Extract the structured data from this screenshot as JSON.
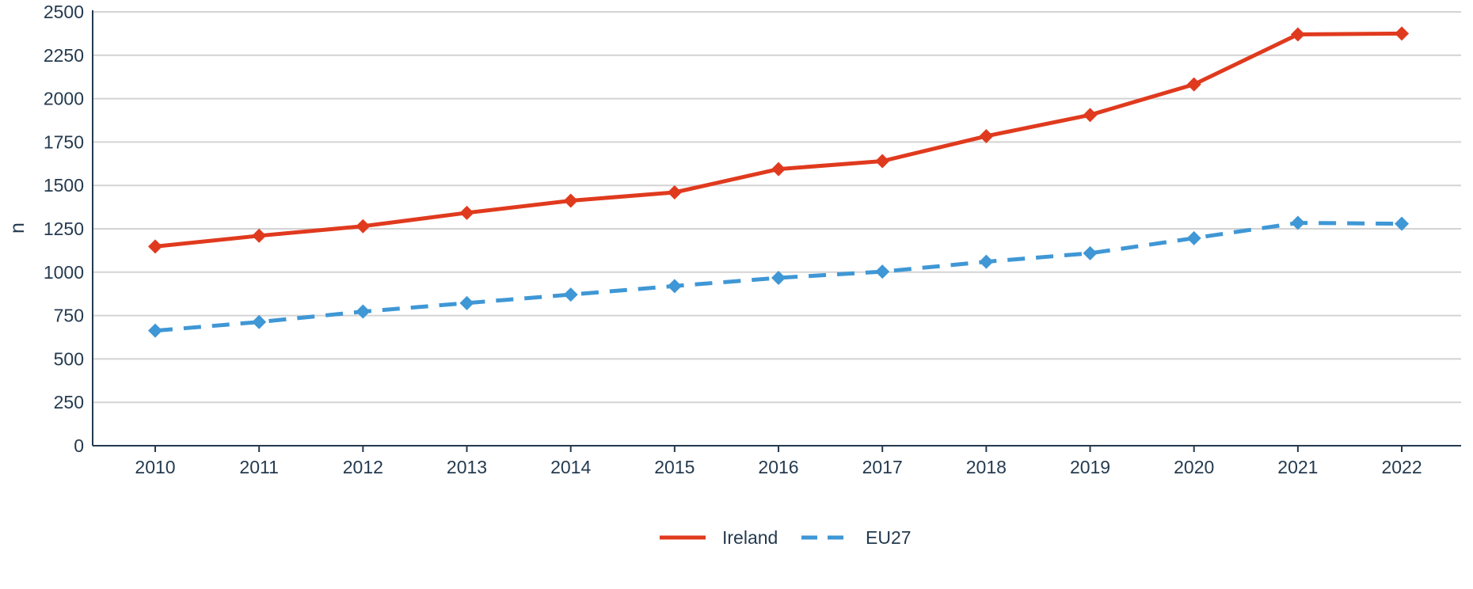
{
  "chart_data": {
    "type": "line",
    "title": "",
    "xlabel": "",
    "ylabel": "n",
    "ylim": [
      0,
      2500
    ],
    "yticks": [
      0,
      250,
      500,
      750,
      1000,
      1250,
      1500,
      1750,
      2000,
      2250,
      2500
    ],
    "categories": [
      "2010",
      "2011",
      "2012",
      "2013",
      "2014",
      "2015",
      "2016",
      "2017",
      "2018",
      "2019",
      "2020",
      "2021",
      "2022"
    ],
    "grid": "horizontal",
    "legend_position": "bottom",
    "series": [
      {
        "name": "Ireland",
        "color": "#e03a1e",
        "line_style": "solid",
        "marker": "diamond",
        "values": [
          1148,
          1210,
          1265,
          1342,
          1412,
          1460,
          1594,
          1640,
          1784,
          1906,
          2082,
          2370,
          2375
        ]
      },
      {
        "name": "EU27",
        "color": "#3f97d5",
        "line_style": "dashed",
        "marker": "diamond",
        "values": [
          663,
          713,
          773,
          822,
          871,
          920,
          967,
          1003,
          1060,
          1109,
          1196,
          1284,
          1279
        ]
      }
    ]
  }
}
